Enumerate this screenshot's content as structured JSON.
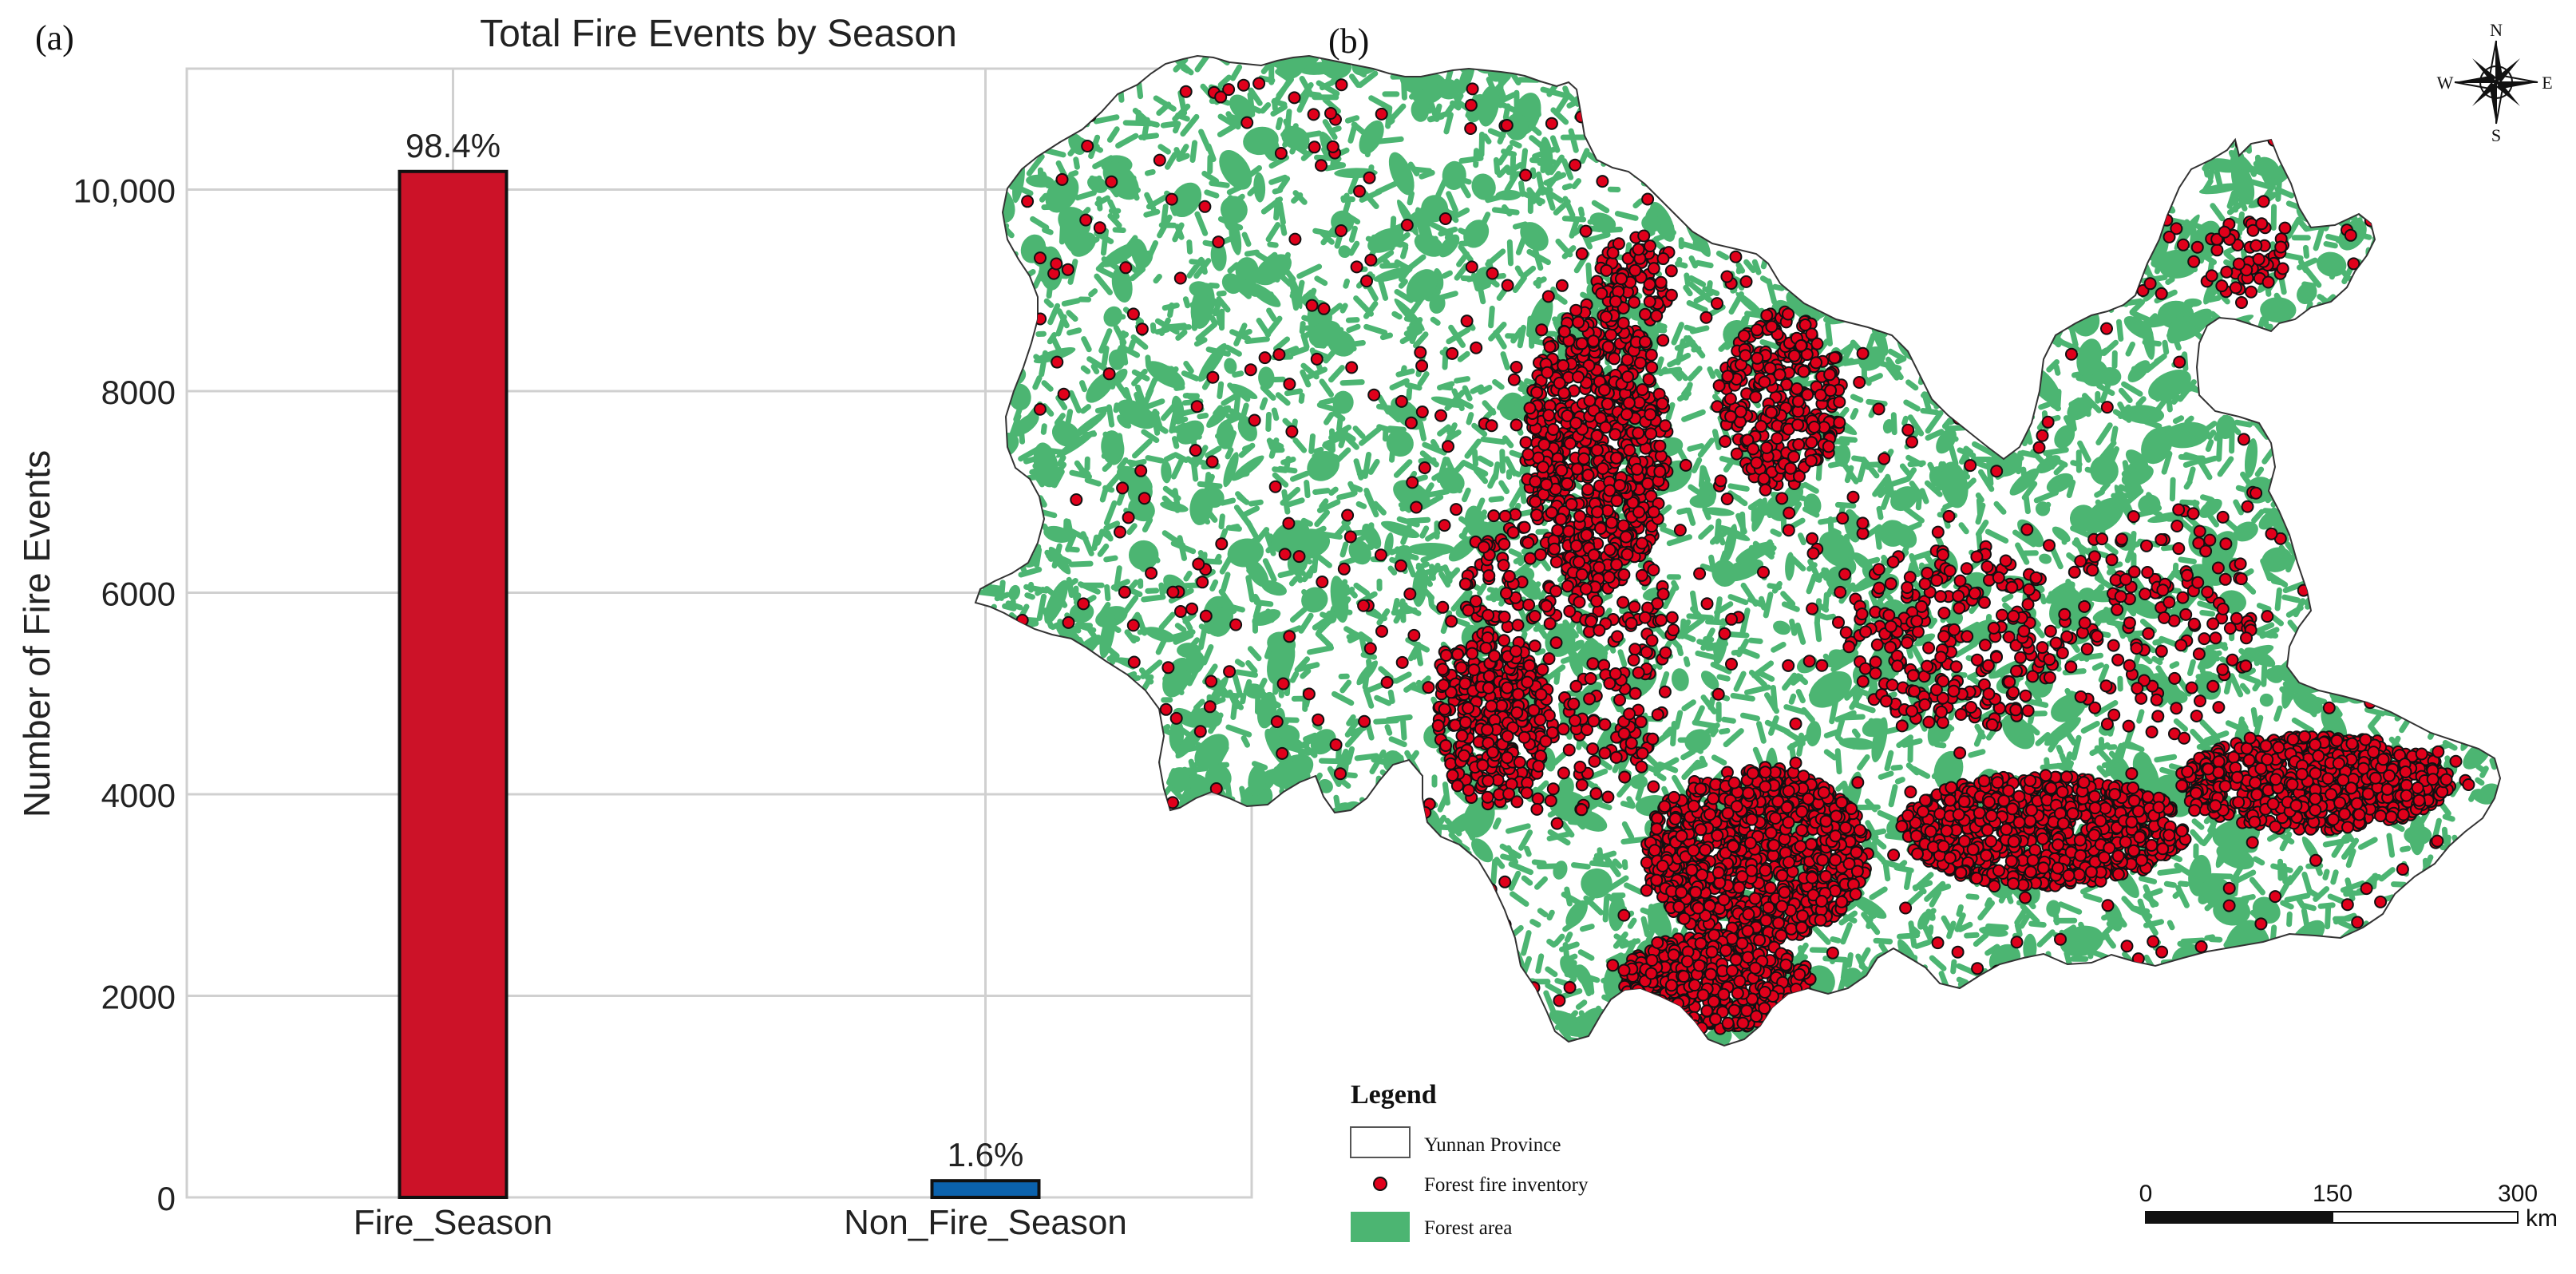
{
  "panel_a": {
    "label": "(a)",
    "chart_data": {
      "type": "bar",
      "title": "Total Fire Events by Season",
      "xlabel": "",
      "ylabel": "Number of Fire Events",
      "categories": [
        "Fire_Season",
        "Non_Fire_Season"
      ],
      "values": [
        10180,
        165
      ],
      "data_labels": [
        "98.4%",
        "1.6%"
      ],
      "ylim": [
        0,
        11200
      ],
      "yticks": [
        0,
        2000,
        4000,
        6000,
        8000,
        10000
      ],
      "ytick_labels": [
        "0",
        "2000",
        "4000",
        "6000",
        "8000",
        "10,000"
      ],
      "grid": true,
      "colors": [
        "#cc1228",
        "#0b62ad"
      ]
    }
  },
  "panel_b": {
    "label": "(b)",
    "compass": {
      "n": "N",
      "s": "S",
      "e": "E",
      "w": "W",
      "icon": "compass-rose-icon"
    },
    "legend": {
      "title": "Legend",
      "items": [
        {
          "label": "Yunnan Province",
          "symbol": "outline-box"
        },
        {
          "label": "Forest fire inventory",
          "symbol": "red-dot",
          "color": "#e0001b"
        },
        {
          "label": "Forest area",
          "symbol": "green-box",
          "color": "#4cb572"
        }
      ]
    },
    "scale_bar": {
      "ticks": [
        "0",
        "150",
        "300"
      ],
      "unit": "km"
    },
    "colors": {
      "forest": "#4cb572",
      "fire": "#e0001b",
      "outline": "#333333"
    }
  }
}
